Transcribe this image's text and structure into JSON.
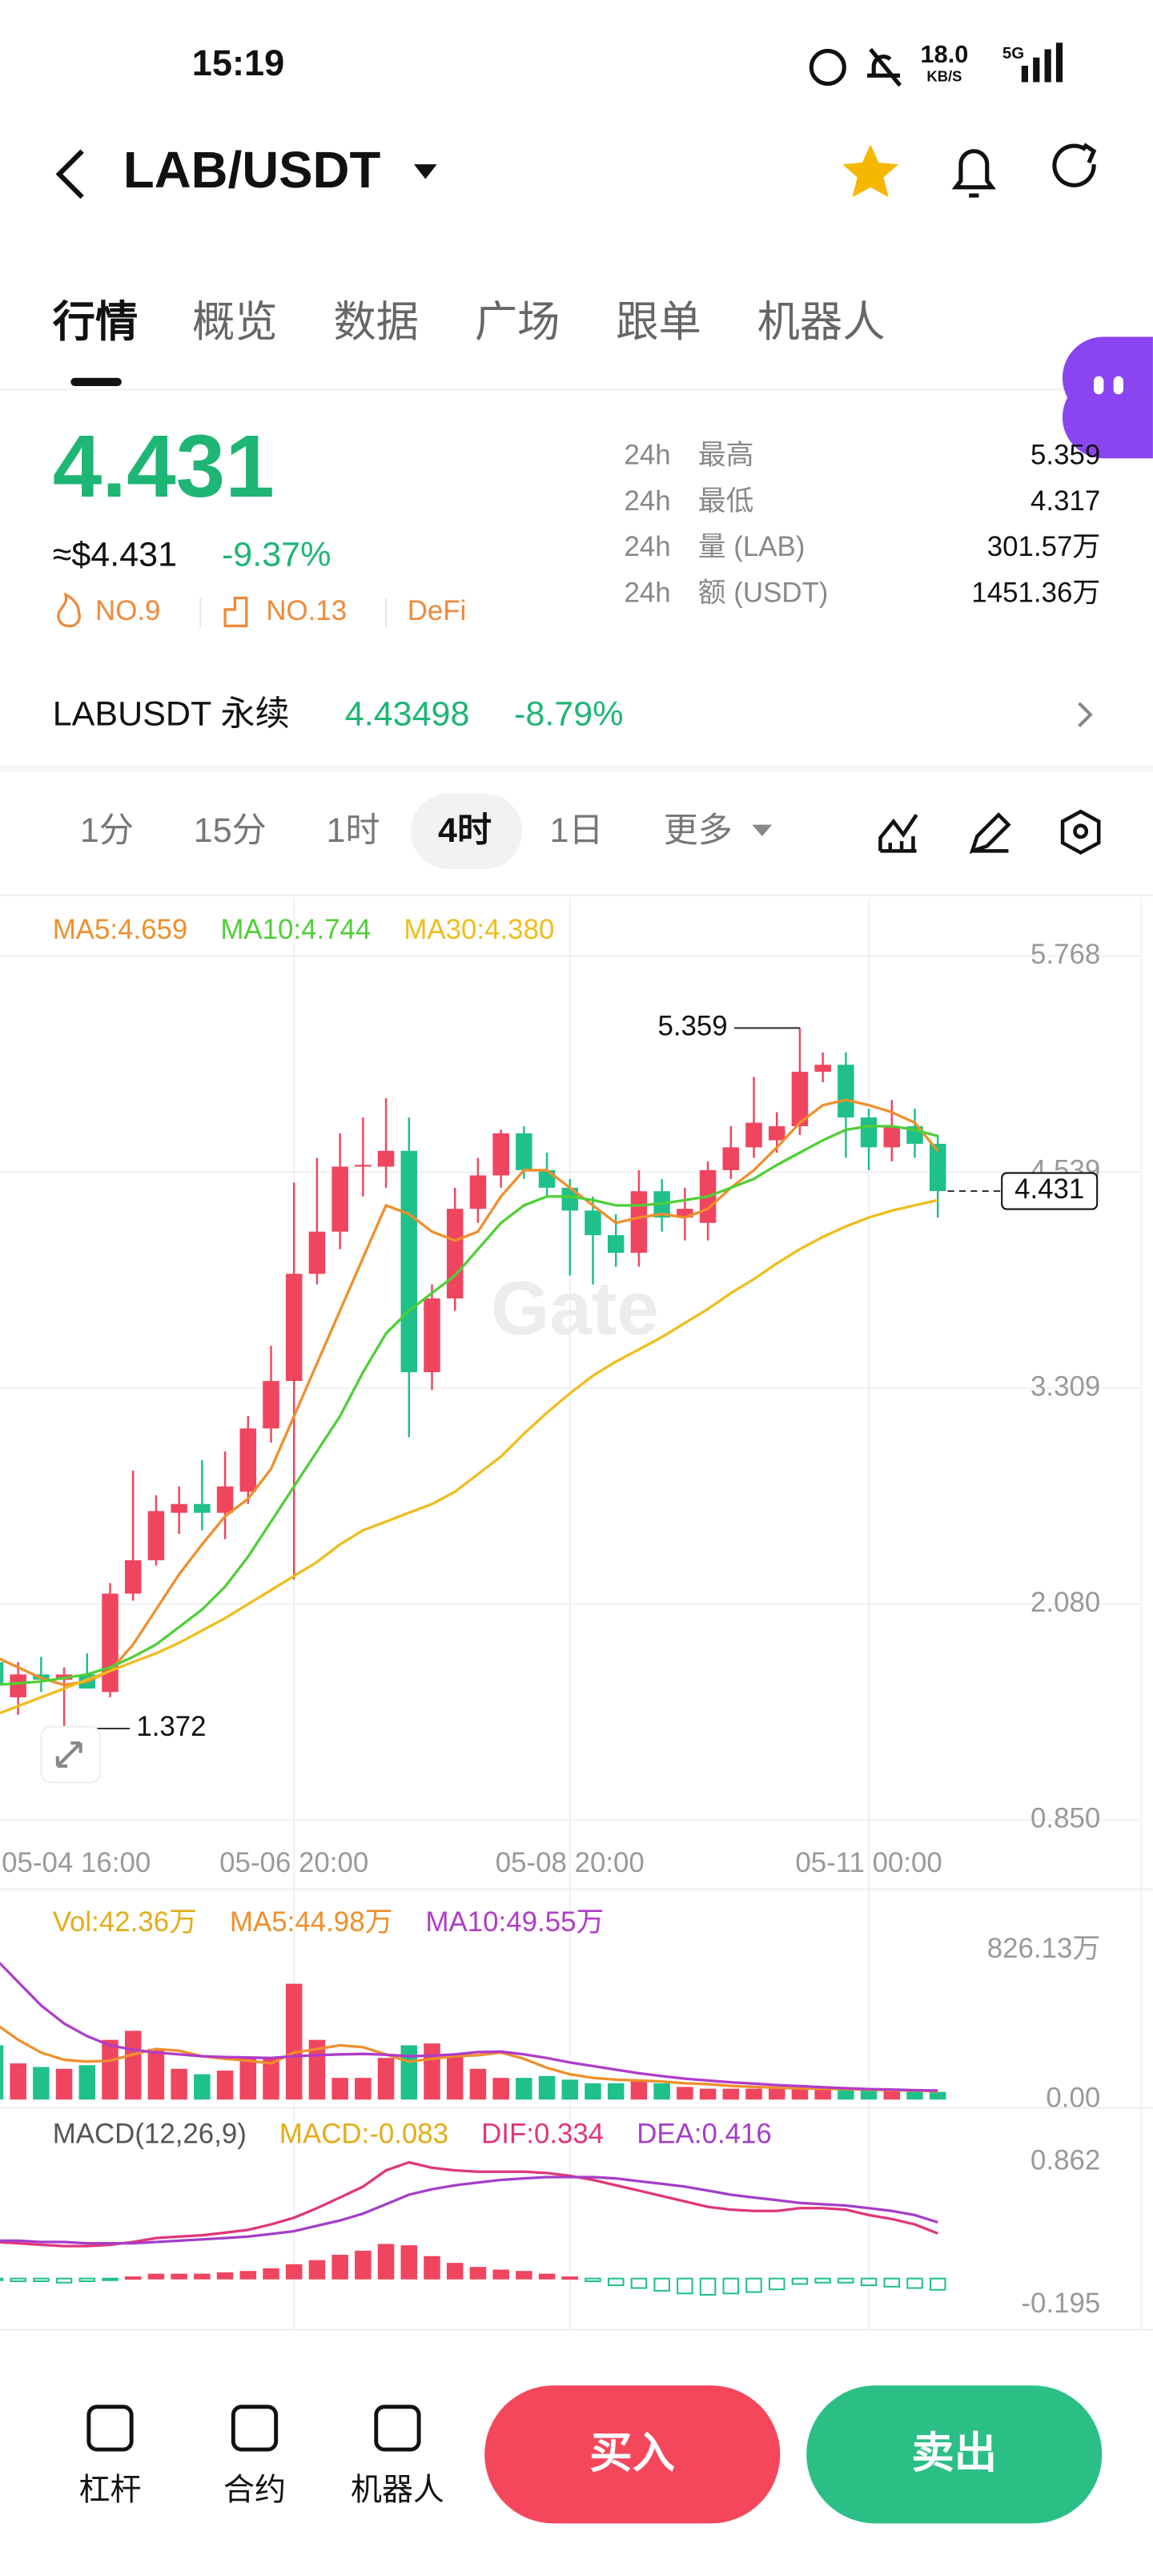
{
  "status_bar": {
    "time": "15:19",
    "speed": "18.0",
    "speed_unit": "KB/S",
    "network": "5G"
  },
  "header": {
    "pair": "LAB/USDT"
  },
  "tabs": [
    "行情",
    "概览",
    "数据",
    "广场",
    "跟单",
    "机器人"
  ],
  "price": {
    "last": "4.431",
    "usd": "≈$4.431",
    "change": "-9.37%",
    "badges": [
      "NO.9",
      "NO.13",
      "DeFi"
    ]
  },
  "stats": [
    {
      "period": "24h",
      "label": "最高",
      "value": "5.359"
    },
    {
      "period": "24h",
      "label": "最低",
      "value": "4.317"
    },
    {
      "period": "24h",
      "label": "量 (LAB)",
      "value": "301.57万"
    },
    {
      "period": "24h",
      "label": "额 (USDT)",
      "value": "1451.36万"
    }
  ],
  "perpetual": {
    "name": "LABUSDT 永续",
    "price": "4.43498",
    "change": "-8.79%"
  },
  "intervals": [
    "1分",
    "15分",
    "1时",
    "4时",
    "1日",
    "更多"
  ],
  "chart_data": [
    {
      "type": "candlestick",
      "watermark": "Gate",
      "grid": true,
      "up_color": "#f0455f",
      "down_color": "#20c08a",
      "categories": [
        "05-04 16:00",
        null,
        null,
        null,
        null,
        null,
        null,
        null,
        null,
        null,
        null,
        null,
        null,
        "05-06 20:00",
        null,
        null,
        null,
        null,
        null,
        null,
        null,
        null,
        null,
        null,
        null,
        "05-08 20:00",
        null,
        null,
        null,
        null,
        null,
        null,
        null,
        null,
        null,
        null,
        null,
        null,
        "05-11 00:00",
        null,
        null,
        null
      ],
      "open": [
        1.75,
        1.55,
        1.68,
        1.65,
        1.68,
        1.58,
        2.14,
        2.33,
        2.6,
        2.65,
        2.6,
        2.72,
        3.08,
        3.35,
        3.96,
        4.2,
        4.57,
        4.57,
        4.66,
        3.4,
        3.82,
        4.33,
        4.52,
        4.76,
        4.55,
        4.45,
        4.32,
        4.18,
        4.08,
        4.43,
        4.28,
        4.25,
        4.55,
        4.68,
        4.72,
        4.8,
        5.11,
        5.15,
        4.85,
        4.68,
        4.8,
        4.7
      ],
      "high": [
        1.85,
        1.75,
        1.78,
        1.72,
        1.8,
        2.2,
        2.84,
        2.7,
        2.75,
        2.9,
        2.95,
        3.15,
        3.55,
        4.48,
        4.62,
        4.76,
        4.85,
        4.96,
        4.85,
        3.9,
        4.45,
        4.62,
        4.78,
        4.8,
        4.65,
        4.5,
        4.4,
        4.3,
        4.55,
        4.5,
        4.45,
        4.6,
        4.8,
        5.08,
        4.88,
        5.359,
        5.22,
        5.22,
        4.9,
        4.95,
        4.9,
        4.75
      ],
      "low": [
        1.55,
        1.45,
        1.58,
        1.372,
        1.6,
        1.55,
        2.1,
        2.3,
        2.48,
        2.5,
        2.45,
        2.65,
        3.0,
        2.22,
        3.9,
        4.1,
        4.4,
        4.45,
        3.03,
        3.3,
        3.75,
        4.25,
        4.45,
        4.5,
        4.4,
        3.95,
        3.9,
        4.0,
        4.0,
        4.2,
        4.15,
        4.15,
        4.5,
        4.62,
        4.65,
        4.75,
        5.05,
        4.62,
        4.55,
        4.6,
        4.62,
        4.28
      ],
      "close": [
        1.62,
        1.68,
        1.65,
        1.68,
        1.6,
        2.14,
        2.33,
        2.61,
        2.65,
        2.6,
        2.75,
        3.08,
        3.35,
        3.96,
        4.2,
        4.57,
        4.58,
        4.66,
        3.4,
        3.82,
        4.33,
        4.52,
        4.76,
        4.55,
        4.45,
        4.32,
        4.18,
        4.08,
        4.43,
        4.28,
        4.33,
        4.55,
        4.68,
        4.82,
        4.8,
        5.11,
        5.15,
        4.85,
        4.68,
        4.8,
        4.7,
        4.431
      ],
      "series": [
        {
          "name": "MA5:4.659",
          "color": "#ef8f2c",
          "values": [
            1.78,
            1.72,
            1.66,
            1.62,
            1.64,
            1.7,
            1.85,
            2.05,
            2.25,
            2.42,
            2.58,
            2.68,
            2.85,
            3.15,
            3.45,
            3.75,
            4.05,
            4.35,
            4.3,
            4.2,
            4.15,
            4.2,
            4.4,
            4.55,
            4.55,
            4.45,
            4.35,
            4.25,
            4.28,
            4.3,
            4.28,
            4.33,
            4.45,
            4.55,
            4.68,
            4.82,
            4.92,
            4.95,
            4.92,
            4.88,
            4.82,
            4.659
          ]
        },
        {
          "name": "MA10:4.744",
          "color": "#4fcf36",
          "values": [
            1.62,
            1.63,
            1.64,
            1.66,
            1.68,
            1.72,
            1.78,
            1.85,
            1.95,
            2.05,
            2.18,
            2.35,
            2.55,
            2.75,
            2.95,
            3.15,
            3.4,
            3.62,
            3.75,
            3.85,
            3.95,
            4.1,
            4.25,
            4.35,
            4.4,
            4.4,
            4.38,
            4.35,
            4.35,
            4.36,
            4.38,
            4.4,
            4.45,
            4.5,
            4.58,
            4.65,
            4.72,
            4.78,
            4.8,
            4.8,
            4.78,
            4.744
          ]
        },
        {
          "name": "MA30:4.380",
          "color": "#efbd1c",
          "values": [
            1.45,
            1.5,
            1.55,
            1.6,
            1.65,
            1.7,
            1.75,
            1.8,
            1.86,
            1.93,
            2.0,
            2.08,
            2.16,
            2.24,
            2.32,
            2.42,
            2.5,
            2.55,
            2.6,
            2.65,
            2.72,
            2.82,
            2.92,
            3.05,
            3.17,
            3.28,
            3.38,
            3.46,
            3.53,
            3.6,
            3.68,
            3.76,
            3.85,
            3.93,
            4.02,
            4.1,
            4.17,
            4.23,
            4.28,
            4.32,
            4.35,
            4.38
          ]
        }
      ],
      "last_price": 4.431,
      "ylim": [
        0.85,
        5.768
      ],
      "yticks": [
        5.768,
        4.539,
        3.309,
        {
          "value": 2.08,
          "label": "2.080"
        },
        {
          "value": 0.85,
          "label": "0.850"
        }
      ]
    },
    {
      "type": "bar",
      "label": "Vol:42.36万",
      "label_color": "#e2ad18",
      "grid": false,
      "up_color": "#f0455f",
      "down_color": "#20c08a",
      "values": [
        300,
        200,
        180,
        170,
        190,
        330,
        380,
        280,
        170,
        140,
        160,
        230,
        230,
        640,
        330,
        120,
        120,
        230,
        300,
        310,
        250,
        170,
        120,
        120,
        130,
        110,
        90,
        90,
        110,
        90,
        70,
        60,
        60,
        60,
        70,
        80,
        60,
        55,
        55,
        50,
        50,
        42.36
      ],
      "series": [
        {
          "name": "MA5:44.98万",
          "color": "#ef8f2c",
          "values": [
            420,
            330,
            260,
            220,
            210,
            215,
            250,
            280,
            270,
            240,
            225,
            215,
            200,
            260,
            280,
            300,
            290,
            250,
            210,
            225,
            240,
            245,
            260,
            225,
            175,
            140,
            120,
            110,
            105,
            100,
            90,
            85,
            75,
            70,
            65,
            62,
            60,
            58,
            55,
            52,
            50,
            44.98
          ]
        },
        {
          "name": "MA10:49.55万",
          "color": "#b03cc8",
          "values": [
            780,
            650,
            520,
            420,
            350,
            300,
            275,
            260,
            250,
            240,
            235,
            232,
            230,
            240,
            245,
            250,
            252,
            248,
            240,
            242,
            250,
            262,
            265,
            250,
            230,
            205,
            185,
            165,
            145,
            130,
            115,
            105,
            95,
            88,
            80,
            74,
            68,
            63,
            58,
            55,
            52,
            49.55
          ]
        }
      ],
      "ylim": [
        0,
        826.13
      ],
      "yticks": [
        {
          "value": 826.13,
          "label": "826.13万"
        },
        {
          "value": 0,
          "label": "0.00"
        }
      ]
    },
    {
      "type": "macd",
      "title": "MACD(12,26,9)",
      "grid": false,
      "up_color": "#f0455f",
      "down_color": "#20c08a",
      "histogram": {
        "name": "MACD:-0.083",
        "color": "#e2ad18",
        "values": [
          -0.01,
          -0.02,
          -0.02,
          -0.03,
          -0.02,
          -0.01,
          0.01,
          0.03,
          0.03,
          0.03,
          0.04,
          0.05,
          0.07,
          0.1,
          0.13,
          0.17,
          0.2,
          0.25,
          0.24,
          0.16,
          0.11,
          0.08,
          0.06,
          0.05,
          0.03,
          0.01,
          -0.02,
          -0.05,
          -0.07,
          -0.09,
          -0.11,
          -0.12,
          -0.11,
          -0.1,
          -0.08,
          -0.04,
          -0.03,
          -0.03,
          -0.05,
          -0.06,
          -0.07,
          -0.083
        ]
      },
      "series": [
        {
          "name": "DIF:0.334",
          "color": "#e0367a",
          "values": [
            0.27,
            0.26,
            0.25,
            0.24,
            0.24,
            0.25,
            0.27,
            0.3,
            0.31,
            0.32,
            0.34,
            0.36,
            0.4,
            0.45,
            0.52,
            0.6,
            0.68,
            0.8,
            0.86,
            0.82,
            0.8,
            0.79,
            0.79,
            0.79,
            0.78,
            0.76,
            0.73,
            0.69,
            0.65,
            0.61,
            0.57,
            0.53,
            0.51,
            0.5,
            0.5,
            0.52,
            0.52,
            0.51,
            0.47,
            0.44,
            0.4,
            0.334
          ]
        },
        {
          "name": "DEA:0.416",
          "color": "#a43ec8",
          "values": [
            0.28,
            0.28,
            0.27,
            0.27,
            0.26,
            0.26,
            0.26,
            0.27,
            0.28,
            0.29,
            0.3,
            0.31,
            0.33,
            0.35,
            0.39,
            0.43,
            0.48,
            0.55,
            0.62,
            0.66,
            0.69,
            0.71,
            0.73,
            0.74,
            0.75,
            0.75,
            0.75,
            0.74,
            0.72,
            0.7,
            0.68,
            0.65,
            0.62,
            0.6,
            0.58,
            0.56,
            0.55,
            0.54,
            0.52,
            0.5,
            0.47,
            0.416
          ]
        }
      ],
      "ylim": [
        -0.195,
        0.862
      ],
      "yticks": [
        0.862,
        -0.195
      ]
    }
  ],
  "footer": {
    "actions": [
      "杠杆",
      "合约",
      "机器人"
    ],
    "buy": "买入",
    "sell": "卖出"
  }
}
